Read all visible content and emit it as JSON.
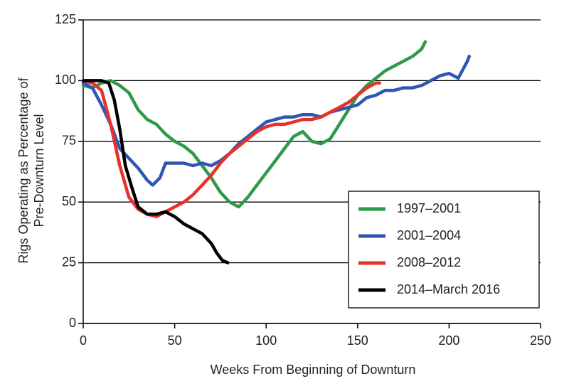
{
  "chart_data": {
    "type": "line",
    "xlabel": "Weeks From Beginning of Downturn",
    "ylabel": [
      "Rigs Operating as Percentage of",
      "Pre-Downturn Level"
    ],
    "xlim": [
      0,
      250
    ],
    "xticks": [
      0,
      50,
      100,
      150,
      200,
      250
    ],
    "ylim": [
      0,
      125
    ],
    "yticks": [
      0,
      25,
      50,
      75,
      100,
      125
    ],
    "grid": true,
    "legend": "lower right",
    "series": [
      {
        "name": "1997–2001",
        "color": "#2e9a48",
        "x": [
          0,
          5,
          10,
          15,
          20,
          25,
          30,
          35,
          40,
          45,
          50,
          55,
          60,
          65,
          70,
          75,
          80,
          85,
          90,
          95,
          100,
          105,
          110,
          115,
          120,
          125,
          130,
          135,
          140,
          145,
          150,
          155,
          160,
          165,
          170,
          175,
          180,
          185,
          187
        ],
        "values": [
          98,
          97,
          99,
          100,
          98,
          95,
          88,
          84,
          82,
          78,
          75,
          73,
          70,
          65,
          60,
          54,
          50,
          48,
          52,
          57,
          62,
          67,
          72,
          77,
          79,
          75,
          74,
          76,
          82,
          88,
          94,
          98,
          101,
          104,
          106,
          108,
          110,
          113,
          116
        ]
      },
      {
        "name": "2001–2004",
        "color": "#2f56b4",
        "x": [
          0,
          5,
          10,
          15,
          20,
          25,
          30,
          35,
          38,
          42,
          45,
          50,
          55,
          60,
          65,
          70,
          75,
          80,
          85,
          90,
          95,
          100,
          105,
          110,
          115,
          120,
          125,
          130,
          135,
          140,
          145,
          150,
          155,
          160,
          165,
          170,
          175,
          180,
          185,
          190,
          195,
          200,
          205,
          210,
          211
        ],
        "values": [
          99,
          97,
          90,
          82,
          72,
          68,
          64,
          59,
          57,
          60,
          66,
          66,
          66,
          65,
          66,
          65,
          67,
          70,
          74,
          77,
          80,
          83,
          84,
          85,
          85,
          86,
          86,
          85,
          87,
          88,
          89,
          90,
          93,
          94,
          96,
          96,
          97,
          97,
          98,
          100,
          102,
          103,
          101,
          108,
          110
        ]
      },
      {
        "name": "2008–2012",
        "color": "#e8302a",
        "x": [
          0,
          5,
          10,
          15,
          20,
          25,
          30,
          35,
          40,
          45,
          50,
          55,
          60,
          65,
          70,
          75,
          80,
          85,
          90,
          95,
          100,
          105,
          110,
          115,
          120,
          125,
          130,
          135,
          140,
          145,
          150,
          155,
          160,
          162
        ],
        "values": [
          100,
          99,
          96,
          82,
          65,
          52,
          47,
          45,
          44,
          46,
          48,
          50,
          53,
          57,
          61,
          66,
          70,
          73,
          76,
          79,
          81,
          82,
          82,
          83,
          84,
          84,
          85,
          87,
          89,
          91,
          94,
          97,
          99,
          99
        ]
      },
      {
        "name": "2014–March 2016",
        "color": "#000000",
        "x": [
          0,
          5,
          10,
          14,
          17,
          20,
          23,
          27,
          30,
          35,
          40,
          45,
          50,
          55,
          60,
          65,
          70,
          73,
          76,
          79
        ],
        "values": [
          100,
          100,
          100,
          99,
          92,
          80,
          65,
          55,
          48,
          45,
          45,
          46,
          44,
          41,
          39,
          37,
          33,
          29,
          26,
          25
        ]
      }
    ]
  }
}
